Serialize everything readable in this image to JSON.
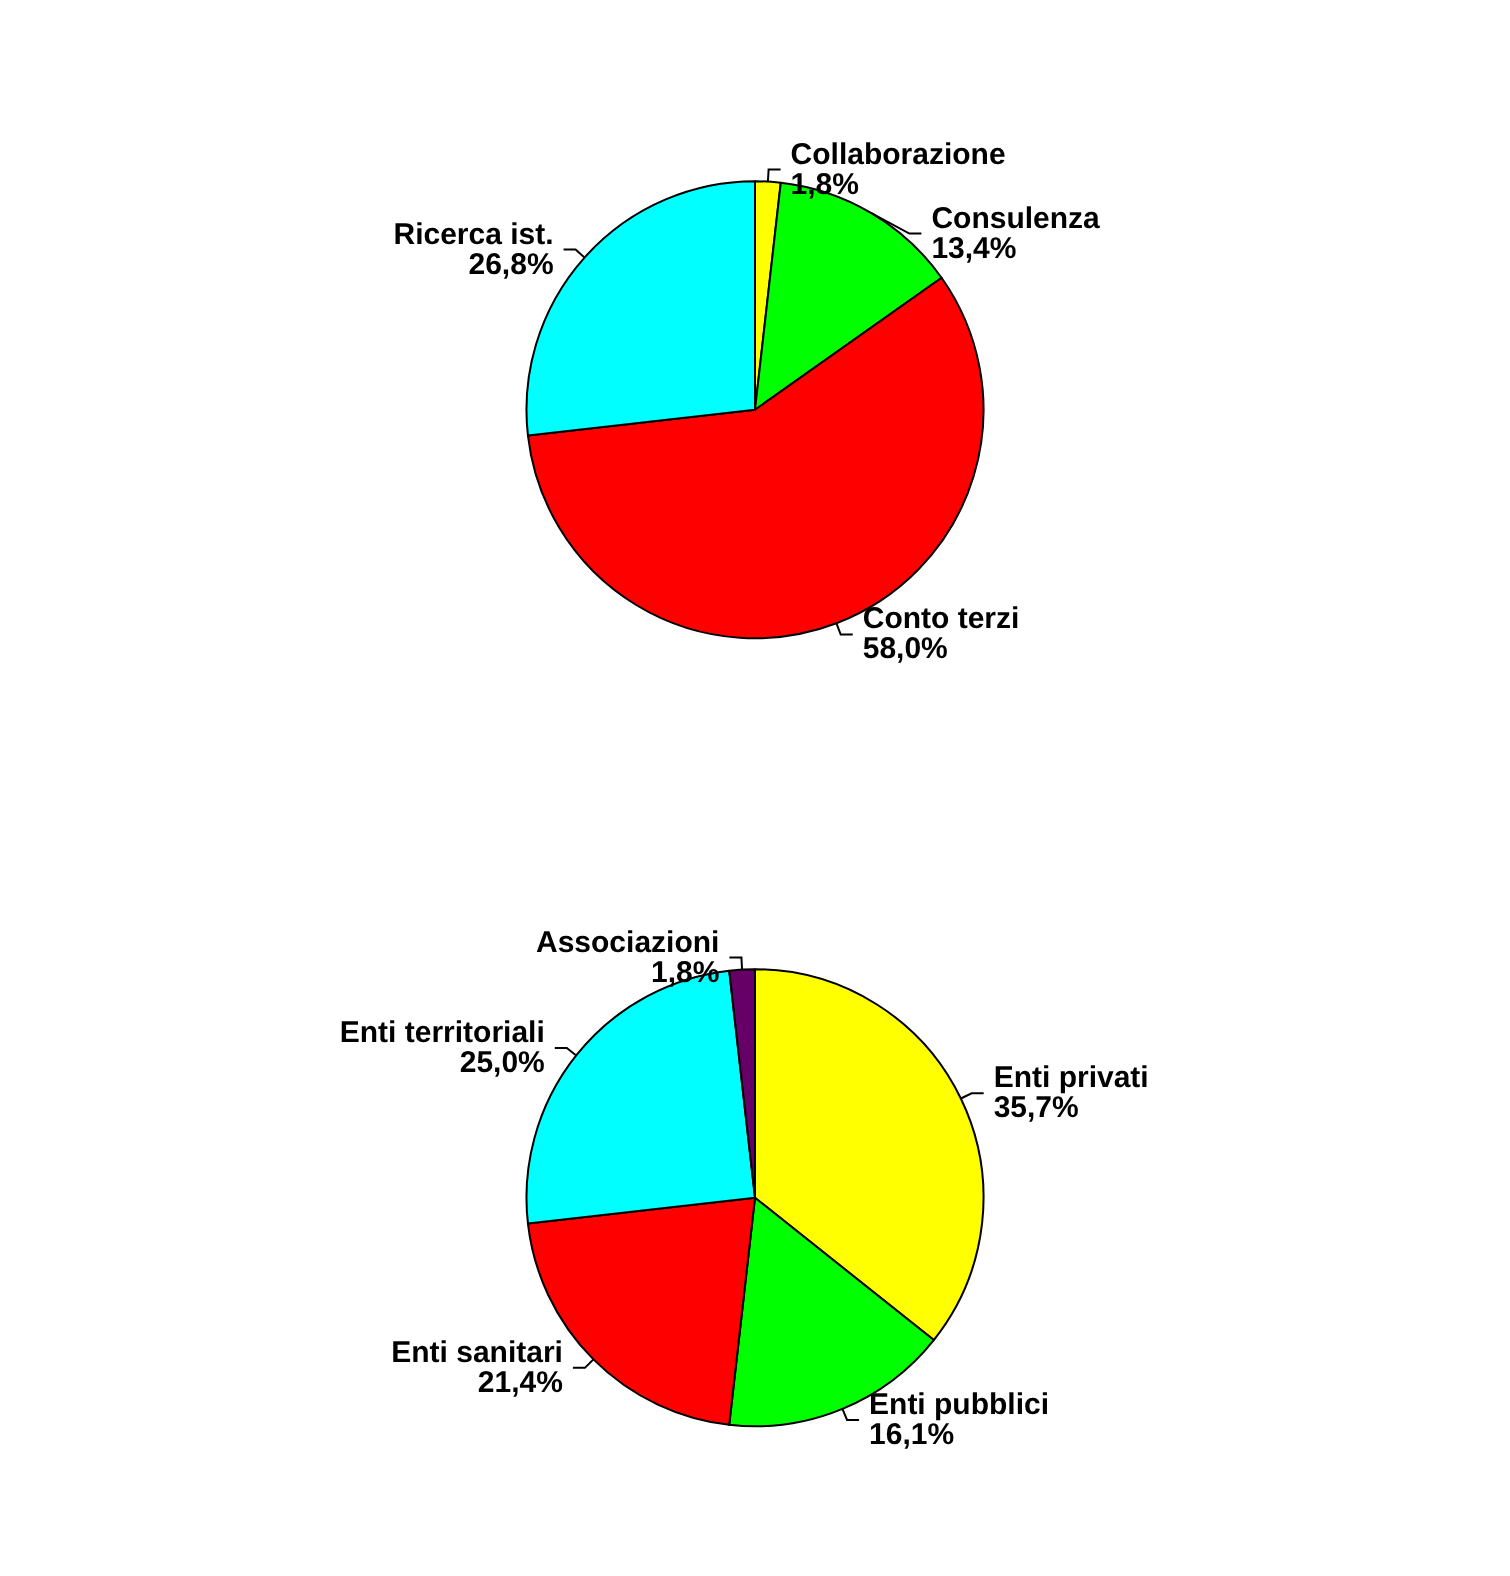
{
  "chart_data": [
    {
      "type": "pie",
      "categories": [
        "Collaborazione",
        "Consulenza",
        "Conto terzi",
        "Ricerca ist."
      ],
      "values": [
        1.8,
        13.4,
        58.0,
        26.8
      ],
      "value_labels": [
        "1,8%",
        "13,4%",
        "58,0%",
        "26,8%"
      ],
      "colors": [
        "#ffff00",
        "#00ff00",
        "#ff0000",
        "#00ffff"
      ]
    },
    {
      "type": "pie",
      "categories": [
        "Enti privati",
        "Enti pubblici",
        "Enti sanitari",
        "Enti territoriali",
        "Associazioni"
      ],
      "values": [
        35.7,
        16.1,
        21.4,
        25.0,
        1.8
      ],
      "value_labels": [
        "35,7%",
        "16,1%",
        "21,4%",
        "25,0%",
        "1,8%"
      ],
      "colors": [
        "#ffff00",
        "#00ff00",
        "#ff0000",
        "#00ffff",
        "#660066"
      ]
    }
  ]
}
